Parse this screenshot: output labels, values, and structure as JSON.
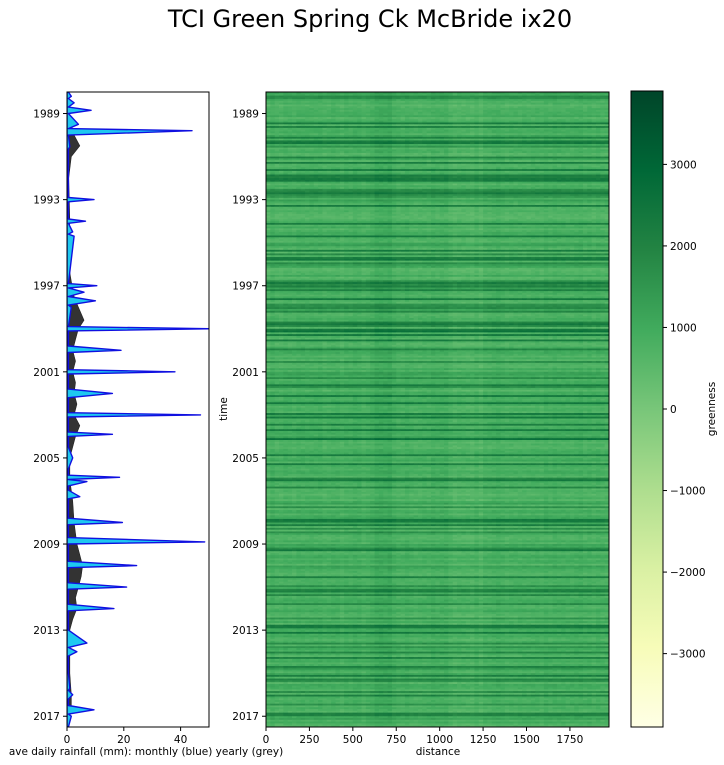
{
  "figure": {
    "title": "TCI Green Spring Ck McBride ix20"
  },
  "chart_data": [
    {
      "type": "area",
      "name": "rainfall",
      "xlabel": "ave daily rainfall (mm): monthly (blue) yearly (grey)",
      "ylabel": "",
      "xlim": [
        0,
        50
      ],
      "xticks": [
        "0",
        "20",
        "40"
      ],
      "ylim": [
        1988.0,
        2017.5
      ],
      "yticks": [
        "1989",
        "1993",
        "1997",
        "2001",
        "2005",
        "2009",
        "2013",
        "2017"
      ],
      "colors": {
        "monthly_fill": "#1ec8f0",
        "monthly_line": "#1010e0",
        "yearly_fill": "#333333"
      },
      "series": [
        {
          "name": "",
          "role": "yearly",
          "t": [
            1988.0,
            1988.8,
            1989.5,
            1990.0,
            1990.5,
            1991.0,
            1992.0,
            1993.0,
            1994.0,
            1995.0,
            1996.0,
            1996.8,
            1997.5,
            1998.0,
            1998.6,
            1999.0,
            1999.5,
            2000.0,
            2000.5,
            2001.0,
            2001.5,
            2002.0,
            2002.5,
            2003.0,
            2003.5,
            2004.0,
            2005.0,
            2006.0,
            2007.0,
            2008.0,
            2008.5,
            2009.0,
            2009.5,
            2010.0,
            2010.5,
            2011.0,
            2011.5,
            2012.0,
            2012.5,
            2013.0,
            2014.0,
            2015.0,
            2016.0,
            2016.5,
            2017.0,
            2017.5
          ],
          "values": [
            0.3,
            0.6,
            1.5,
            2.5,
            4.5,
            1.5,
            0.6,
            0.8,
            1.0,
            0.8,
            0.5,
            1.5,
            2.5,
            4.0,
            6.0,
            4.0,
            3.0,
            2.0,
            3.0,
            2.0,
            3.0,
            2.5,
            3.5,
            2.5,
            4.5,
            3.0,
            1.0,
            1.0,
            2.0,
            2.5,
            3.0,
            3.5,
            4.5,
            5.5,
            5.0,
            4.0,
            3.0,
            3.5,
            2.0,
            1.0,
            1.0,
            1.0,
            1.5,
            1.5,
            1.0,
            0.5
          ]
        },
        {
          "name": "",
          "role": "monthly",
          "t": [
            1988.0,
            1988.2,
            1988.3,
            1988.5,
            1988.7,
            1988.85,
            1989.0,
            1989.5,
            1989.7,
            1989.8,
            1990.0,
            1990.55,
            1990.65,
            1990.75,
            1991.0,
            1991.5,
            1992.0,
            1992.5,
            1992.9,
            1993.0,
            1993.1,
            1993.5,
            1993.9,
            1994.0,
            1994.1,
            1994.5,
            1994.6,
            1994.7,
            1996.9,
            1997.0,
            1997.1,
            1997.3,
            1997.5,
            1997.7,
            1997.9,
            1998.0,
            1998.9,
            1999.0,
            1999.1,
            1999.2,
            1999.8,
            2000.0,
            2000.1,
            2000.9,
            2001.0,
            2001.1,
            2001.5,
            2001.8,
            2002.0,
            2002.2,
            2002.6,
            2002.9,
            2003.0,
            2003.1,
            2003.5,
            2003.8,
            2003.9,
            2004.0,
            2004.1,
            2004.5,
            2005.0,
            2005.5,
            2005.8,
            2005.9,
            2006.0,
            2006.1,
            2006.3,
            2006.5,
            2006.8,
            2006.9,
            2007.0,
            2007.1,
            2007.5,
            2007.8,
            2008.0,
            2008.1,
            2008.3,
            2008.5,
            2008.7,
            2008.9,
            2009.0,
            2009.1,
            2009.5,
            2009.8,
            2010.0,
            2010.1,
            2010.2,
            2010.5,
            2010.8,
            2011.0,
            2011.1,
            2011.2,
            2011.5,
            2011.8,
            2012.0,
            2012.1,
            2012.2,
            2012.5,
            2013.0,
            2013.6,
            2013.8,
            2014.0,
            2014.2,
            2015.0,
            2015.7,
            2015.8,
            2016.0,
            2016.2,
            2016.3,
            2016.5,
            2016.7,
            2016.9,
            2017.0,
            2017.5
          ],
          "values": [
            0.5,
            1.5,
            0.5,
            2.5,
            0.5,
            8.5,
            0.5,
            4.0,
            0.5,
            44.0,
            0.5,
            1.0,
            0.5,
            0.5,
            0.5,
            0.5,
            0.5,
            0.5,
            0.5,
            9.5,
            0.5,
            0.5,
            0.5,
            6.5,
            0.5,
            2.0,
            0.5,
            2.5,
            0.5,
            10.5,
            0.5,
            6.0,
            0.5,
            10.0,
            0.5,
            1.5,
            0.5,
            51.0,
            0.5,
            0.5,
            0.5,
            19.0,
            0.5,
            0.5,
            38.0,
            0.5,
            0.5,
            0.5,
            16.0,
            0.5,
            0.5,
            0.5,
            47.0,
            0.5,
            0.5,
            0.5,
            16.0,
            0.5,
            0.5,
            0.5,
            2.0,
            0.5,
            0.5,
            18.5,
            0.5,
            7.0,
            0.5,
            0.5,
            4.5,
            0.5,
            0.5,
            0.5,
            0.5,
            0.5,
            19.5,
            0.5,
            0.5,
            0.5,
            0.5,
            48.5,
            0.5,
            0.5,
            0.5,
            0.5,
            24.5,
            0.5,
            0.5,
            0.5,
            0.5,
            21.0,
            0.5,
            0.5,
            0.5,
            0.5,
            16.5,
            0.5,
            0.5,
            0.5,
            0.5,
            7.0,
            0.5,
            3.5,
            0.5,
            0.5,
            1.0,
            0.5,
            2.0,
            0.5,
            0.5,
            0.5,
            9.5,
            0.5,
            1.5,
            0.5
          ]
        }
      ]
    },
    {
      "type": "heatmap",
      "name": "greenness",
      "xlabel": "distance",
      "ylabel": "time",
      "xlim": [
        0,
        1975
      ],
      "xticks": [
        "0",
        "250",
        "500",
        "750",
        "1000",
        "1250",
        "1500",
        "1750"
      ],
      "ylim": [
        1988.0,
        2017.5
      ],
      "yticks": [
        "1989",
        "1993",
        "1997",
        "2001",
        "2005",
        "2009",
        "2013",
        "2017"
      ],
      "colorbar": {
        "label": "greenness",
        "range": [
          -3900,
          3900
        ],
        "ticks": [
          "3000",
          "2000",
          "1000",
          "0",
          "−1000",
          "−2000",
          "−3000"
        ],
        "colormap": "Greens",
        "colors": [
          "#ffffe5",
          "#f7fcb9",
          "#d9f0a3",
          "#addd8e",
          "#78c679",
          "#41ab5d",
          "#238443",
          "#006837",
          "#004529"
        ]
      }
    }
  ]
}
